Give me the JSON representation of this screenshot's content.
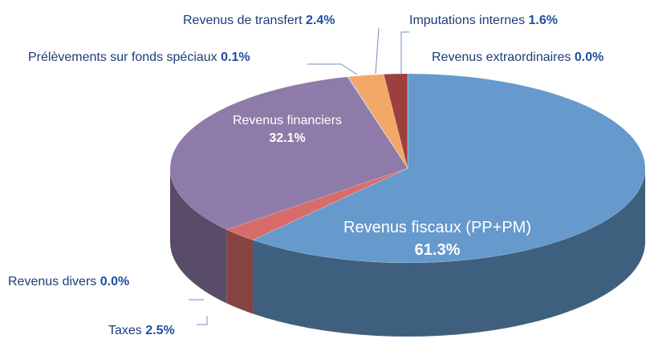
{
  "chart_data": {
    "type": "pie",
    "categories": [
      "Revenus fiscaux (PP+PM)",
      "Revenus divers",
      "Taxes",
      "Revenus financiers",
      "Prélèvements sur fonds spéciaux",
      "Revenus de transfert",
      "Imputations internes",
      "Revenus extraordinaires"
    ],
    "values": [
      61.3,
      0.0,
      2.5,
      32.1,
      0.1,
      2.4,
      1.6,
      0.0
    ],
    "value_labels": [
      "61.3%",
      "0.0%",
      "2.5%",
      "32.1%",
      "0.1%",
      "2.4%",
      "1.6%",
      "0.0%"
    ],
    "colors": [
      "#6699cc",
      "#5a7fb0",
      "#d86c6a",
      "#8f7ba9",
      "#a7c0dd",
      "#f2a867",
      "#9e3f3f",
      "#c05050"
    ]
  }
}
